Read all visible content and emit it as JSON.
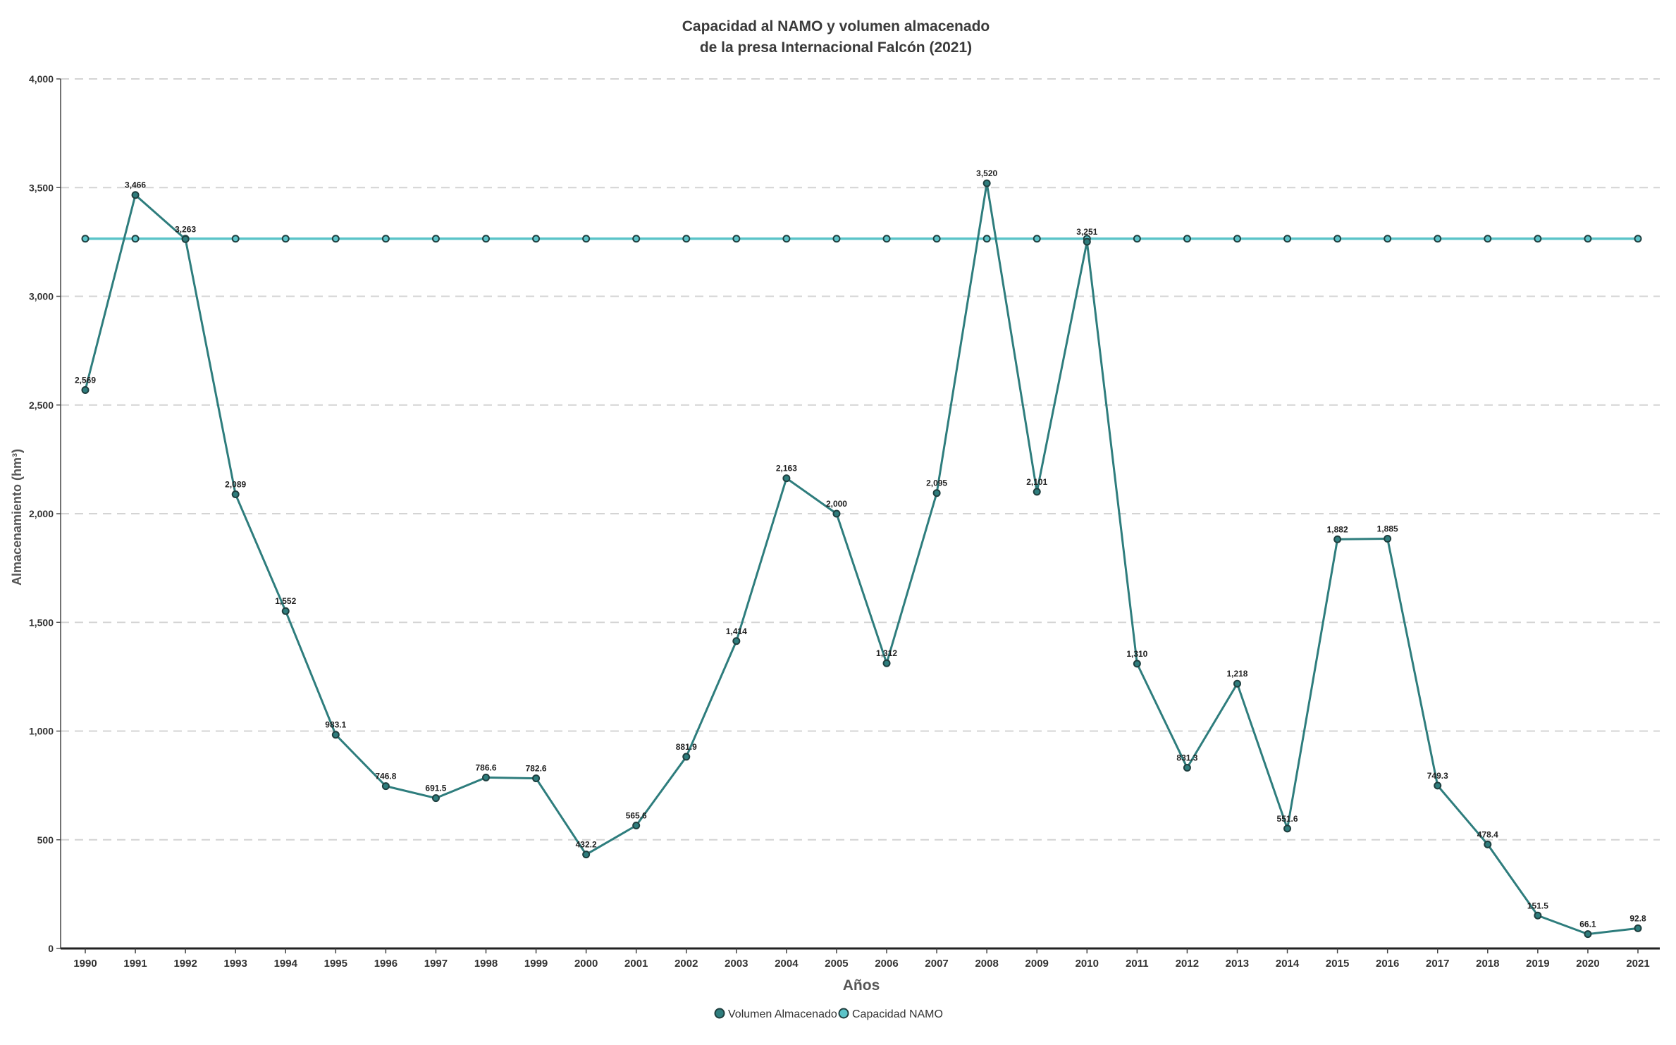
{
  "chart_data": {
    "type": "line",
    "title": "Capacidad al NAMO y volumen almacenado",
    "subtitle": "de la presa Internacional Falcón (2021)",
    "xlabel": "Años",
    "ylabel": "Almacenamiento (hm³)",
    "ylim": [
      0,
      4000
    ],
    "yticks": [
      0,
      500,
      1000,
      1500,
      2000,
      2500,
      3000,
      3500,
      4000
    ],
    "ytick_labels": [
      "0",
      "500",
      "1,000",
      "1,500",
      "2,000",
      "2,500",
      "3,000",
      "3,500",
      "4,000"
    ],
    "grid": true,
    "legend_position": "bottom-center",
    "categories": [
      "1990",
      "1991",
      "1992",
      "1993",
      "1994",
      "1995",
      "1996",
      "1997",
      "1998",
      "1999",
      "2000",
      "2001",
      "2002",
      "2003",
      "2004",
      "2005",
      "2006",
      "2007",
      "2008",
      "2009",
      "2010",
      "2011",
      "2012",
      "2013",
      "2014",
      "2015",
      "2016",
      "2017",
      "2018",
      "2019",
      "2020",
      "2021"
    ],
    "series": [
      {
        "name": "Volumen Almacenado",
        "color": "#2e7d7d",
        "values": [
          2569,
          3466,
          3263,
          2089,
          1552,
          983.1,
          746.8,
          691.5,
          786.6,
          782.6,
          432.2,
          565.6,
          881.9,
          1414,
          2163,
          2000,
          1312,
          2095,
          3520,
          2101,
          3251,
          1310,
          831.3,
          1218,
          551.6,
          1882,
          1885,
          749.3,
          478.4,
          151.5,
          66.1,
          92.8
        ],
        "labels": [
          "2,569",
          "3,466",
          "3,263",
          "2,089",
          "1,552",
          "983.1",
          "746.8",
          "691.5",
          "786.6",
          "782.6",
          "432.2",
          "565.6",
          "881.9",
          "1,414",
          "2,163",
          "2,000",
          "1,312",
          "2,095",
          "3,520",
          "2,101",
          "3,251",
          "1,310",
          "831.3",
          "1,218",
          "551.6",
          "1,882",
          "1,885",
          "749.3",
          "478.4",
          "151.5",
          "66.1",
          "92.8"
        ]
      },
      {
        "name": "Capacidad NAMO",
        "color": "#5bc4c9",
        "values": [
          3265,
          3265,
          3265,
          3265,
          3265,
          3265,
          3265,
          3265,
          3265,
          3265,
          3265,
          3265,
          3265,
          3265,
          3265,
          3265,
          3265,
          3265,
          3265,
          3265,
          3265,
          3265,
          3265,
          3265,
          3265,
          3265,
          3265,
          3265,
          3265,
          3265,
          3265,
          3265
        ]
      }
    ]
  }
}
